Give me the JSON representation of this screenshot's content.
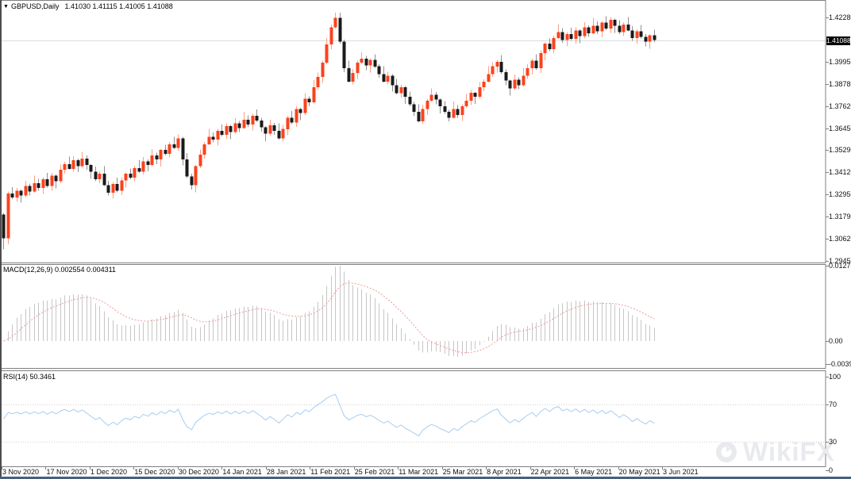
{
  "main_chart": {
    "marker": "▼",
    "symbol_label": "GBPUSD,Daily",
    "ohlc": "1.41030 1.41115 1.41005 1.41088",
    "current_price": "1.41088",
    "axis_prices": [
      "1.42280",
      "1.39950",
      "1.38780",
      "1.37620",
      "1.36450",
      "1.35290",
      "1.34120",
      "1.32950",
      "1.31790",
      "1.30620",
      "1.29450"
    ],
    "colors": {
      "up": "#fb421d",
      "up_wick": "#fc9d82",
      "down": "#1a1a1a",
      "down_wick": "#8f8f8f",
      "price_line": "#d7dde3",
      "current_tag_bg": "#000000",
      "current_tag_fg": "#ffffff",
      "panel_border": "#7f7f7f"
    }
  },
  "macd_panel": {
    "label": "MACD(12,26,9) 0.002554 0.004311",
    "axis": [
      "0.012786",
      "0.00",
      "-0.003952"
    ],
    "colors": {
      "histogram": "#c6c6c6",
      "signal": "#f09a9a"
    }
  },
  "rsi_panel": {
    "label": "RSI(14) 50.3461",
    "axis": [
      "100",
      "70",
      "30",
      "0"
    ],
    "levels": [
      70,
      30
    ],
    "colors": {
      "line": "#a8cdf0",
      "level": "#cfcfcf"
    }
  },
  "date_axis": {
    "labels": [
      "3 Nov 2020",
      "17 Nov 2020",
      "1 Dec 2020",
      "15 Dec 2020",
      "30 Dec 2020",
      "14 Jan 2021",
      "28 Jan 2021",
      "11 Feb 2021",
      "25 Feb 2021",
      "11 Mar 2021",
      "25 Mar 2021",
      "8 Apr 2021",
      "22 Apr 2021",
      "6 May 2021",
      "20 May 2021",
      "3 Jun 2021"
    ]
  },
  "watermark": {
    "text": "WikiFX"
  },
  "chart_data": {
    "type": "candlestick+indicators",
    "symbol": "GBPUSD",
    "timeframe": "Daily",
    "ohlc_display": {
      "open": "1.41030",
      "high": "1.41115",
      "low": "1.41005",
      "close": "1.41088"
    },
    "price_axis": {
      "top_label": 1.4228,
      "bottom_label": 1.2945,
      "step": 0.0117,
      "current": 1.41088
    },
    "macd_axis": {
      "max": 0.012786,
      "zero": 0.0,
      "min": -0.003952
    },
    "rsi_axis": {
      "max": 100,
      "upper_level": 70,
      "lower_level": 30,
      "min": 0,
      "current": 50.3461
    },
    "indicators": {
      "macd": {
        "fast": 12,
        "slow": 26,
        "signal": 9,
        "displayed_values": [
          "0.002554",
          "0.004311"
        ]
      },
      "rsi": {
        "period": 14,
        "displayed_value": "50.3461"
      }
    },
    "first_open": 1.319,
    "closes": [
      1.3065,
      1.33,
      1.328,
      1.3315,
      1.329,
      1.334,
      1.331,
      1.3355,
      1.333,
      1.3375,
      1.334,
      1.3395,
      1.3365,
      1.3425,
      1.3455,
      1.343,
      1.3475,
      1.3445,
      1.3485,
      1.345,
      1.3415,
      1.3375,
      1.3405,
      1.3345,
      1.3305,
      1.335,
      1.3315,
      1.337,
      1.3405,
      1.3385,
      1.3435,
      1.3415,
      1.347,
      1.345,
      1.35,
      1.348,
      1.353,
      1.351,
      1.356,
      1.354,
      1.359,
      1.348,
      1.339,
      1.3345,
      1.3445,
      1.3505,
      1.356,
      1.36,
      1.3585,
      1.363,
      1.361,
      1.3655,
      1.3625,
      1.367,
      1.3645,
      1.369,
      1.3665,
      1.371,
      1.3685,
      1.365,
      1.3615,
      1.366,
      1.363,
      1.359,
      1.364,
      1.37,
      1.3675,
      1.3745,
      1.3725,
      1.38,
      1.378,
      1.386,
      1.3915,
      1.399,
      1.4085,
      1.4175,
      1.4225,
      1.41,
      1.396,
      1.389,
      1.3935,
      1.399,
      1.401,
      1.3975,
      1.4005,
      1.397,
      1.393,
      1.389,
      1.392,
      1.387,
      1.383,
      1.386,
      1.381,
      1.377,
      1.373,
      1.368,
      1.3745,
      1.379,
      1.382,
      1.3795,
      1.376,
      1.373,
      1.37,
      1.3745,
      1.3715,
      1.376,
      1.379,
      1.383,
      1.381,
      1.386,
      1.389,
      1.393,
      1.397,
      1.3995,
      1.394,
      1.3895,
      1.3855,
      1.39,
      1.387,
      1.392,
      1.396,
      1.4,
      1.396,
      1.404,
      1.409,
      1.406,
      1.412,
      1.415,
      1.411,
      1.414,
      1.4115,
      1.416,
      1.413,
      1.4175,
      1.4145,
      1.4185,
      1.4155,
      1.42,
      1.417,
      1.4215,
      1.4185,
      1.415,
      1.419,
      1.416,
      1.412,
      1.4155,
      1.4125,
      1.41,
      1.4135,
      1.4109
    ],
    "wick_up_pattern": [
      0.0022,
      0.001,
      0.0034,
      0.0015,
      0.0006,
      0.0028,
      0.0012,
      0.004
    ],
    "wick_dn_pattern": [
      0.0015,
      0.0032,
      0.0008,
      0.0024,
      0.0038,
      0.001,
      0.002,
      0.0005
    ],
    "wick_overrides": {
      "0": [
        0.0008,
        0.006
      ],
      "76": [
        0.0028,
        0.0008
      ]
    }
  }
}
